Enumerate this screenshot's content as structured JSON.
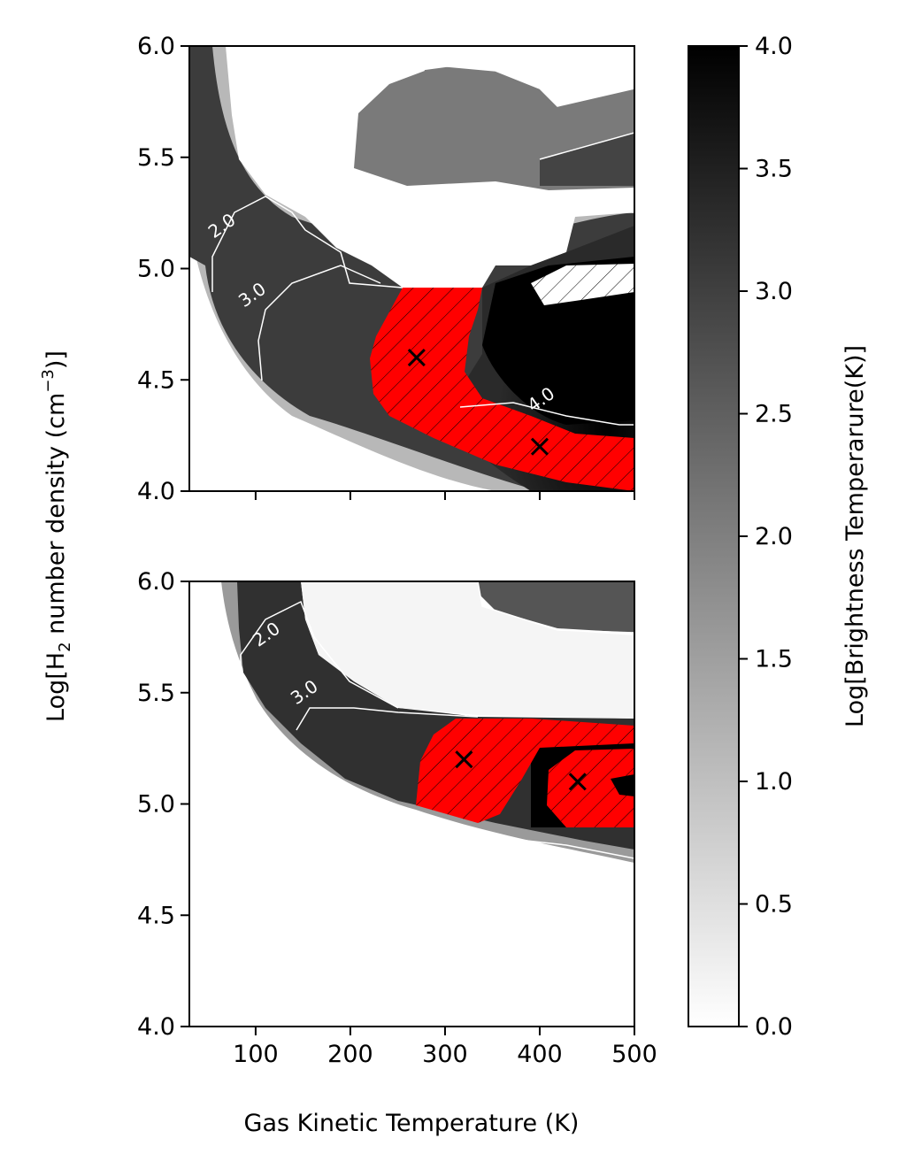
{
  "chart_data": [
    {
      "type": "heatmap",
      "panel": "top",
      "xlim": [
        30,
        500
      ],
      "ylim": [
        4.0,
        6.0
      ],
      "xticks": [
        100,
        200,
        300,
        400,
        500
      ],
      "yticks": [
        4.0,
        4.5,
        5.0,
        5.5,
        6.0
      ],
      "ytick_labels": [
        "4.0",
        "4.5",
        "5.0",
        "5.5",
        "6.0"
      ],
      "xtick_labels": [],
      "ylabel": "Log[H₂ number density (cm⁻³)]",
      "contour_labels": [
        {
          "text": "2.0",
          "x": 68,
          "y": 5.17
        },
        {
          "text": "3.0",
          "x": 100,
          "y": 4.86
        },
        {
          "text": "4.0",
          "x": 405,
          "y": 4.39
        }
      ],
      "markers": [
        {
          "x": 270,
          "y": 4.6
        },
        {
          "x": 400,
          "y": 4.2
        }
      ],
      "best_fit_region": "red hatched band"
    },
    {
      "type": "heatmap",
      "panel": "bottom",
      "xlim": [
        30,
        500
      ],
      "ylim": [
        4.0,
        6.0
      ],
      "xticks": [
        100,
        200,
        300,
        400,
        500
      ],
      "xtick_labels": [
        "100",
        "200",
        "300",
        "400",
        "500"
      ],
      "yticks": [
        4.0,
        4.5,
        5.0,
        5.5,
        6.0
      ],
      "ytick_labels": [
        "4.0",
        "4.5",
        "5.0",
        "5.5",
        "6.0"
      ],
      "xlabel": "Gas Kinetic Temperature (K)",
      "contour_labels": [
        {
          "text": "2.0",
          "x": 115,
          "y": 5.74
        },
        {
          "text": "3.0",
          "x": 155,
          "y": 5.48
        }
      ],
      "markers": [
        {
          "x": 320,
          "y": 5.2
        },
        {
          "x": 440,
          "y": 5.1
        }
      ],
      "best_fit_region": "red hatched band"
    }
  ],
  "colorbar": {
    "label": "Log[Brightness Temperarure(K)]",
    "range": [
      0.0,
      4.0
    ],
    "ticks": [
      0.0,
      0.5,
      1.0,
      1.5,
      2.0,
      2.5,
      3.0,
      3.5,
      4.0
    ],
    "tick_labels": [
      "0.0",
      "0.5",
      "1.0",
      "1.5",
      "2.0",
      "2.5",
      "3.0",
      "3.5",
      "4.0"
    ],
    "colors": {
      "low": "#ffffff",
      "high": "#000000"
    }
  },
  "colors": {
    "best_fit": "#ff0000",
    "marker": "#000000",
    "contour": "#ffffff"
  }
}
